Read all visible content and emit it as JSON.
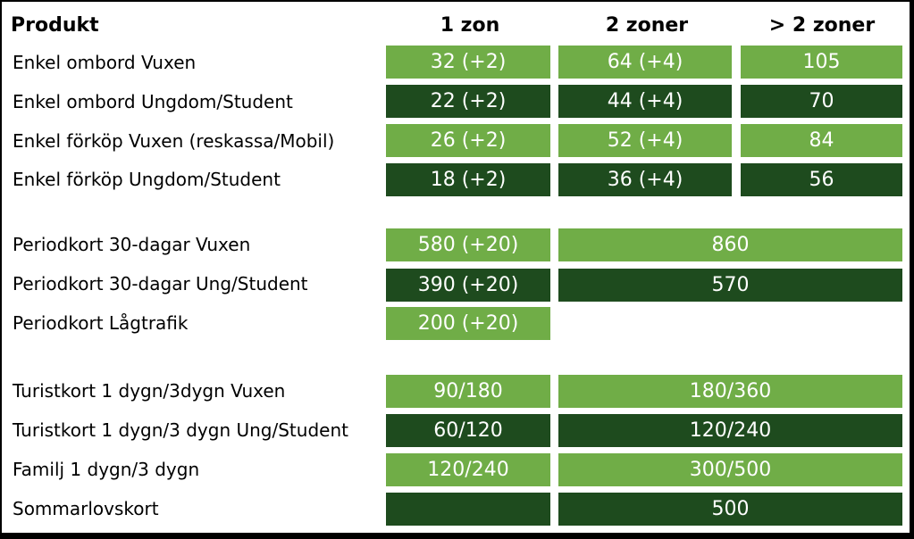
{
  "header": {
    "product": "Produkt",
    "zone1": "1 zon",
    "zone2": "2 zoner",
    "zone3": "> 2 zoner"
  },
  "rows": [
    {
      "label": "Enkel ombord Vuxen",
      "z1": "32 (+2)",
      "z2": "64 (+4)",
      "z3": "105"
    },
    {
      "label": "Enkel ombord Ungdom/Student",
      "z1": "22 (+2)",
      "z2": "44 (+4)",
      "z3": "70"
    },
    {
      "label": "Enkel förköp Vuxen (reskassa/Mobil)",
      "z1": "26 (+2)",
      "z2": "52 (+4)",
      "z3": "84"
    },
    {
      "label": "Enkel förköp Ungdom/Student",
      "z1": "18 (+2)",
      "z2": "36 (+4)",
      "z3": "56"
    },
    {
      "label": "Periodkort 30-dagar Vuxen",
      "z1": "580 (+20)",
      "z23": "860"
    },
    {
      "label": "Periodkort 30-dagar Ung/Student",
      "z1": "390 (+20)",
      "z23": "570"
    },
    {
      "label": "Periodkort Lågtrafik",
      "z1": "200 (+20)"
    },
    {
      "label": "Turistkort 1 dygn/3dygn Vuxen",
      "z1": "90/180",
      "z23": "180/360"
    },
    {
      "label": "Turistkort 1 dygn/3 dygn Ung/Student",
      "z1": "60/120",
      "z23": "120/240"
    },
    {
      "label": "Familj 1 dygn/3 dygn",
      "z1": "120/240",
      "z23": "300/500"
    },
    {
      "label": "Sommarlovskort",
      "z1": "",
      "z23": "500"
    }
  ],
  "colors": {
    "light_green": "#70ad47",
    "dark_green": "#1e4b1e"
  }
}
